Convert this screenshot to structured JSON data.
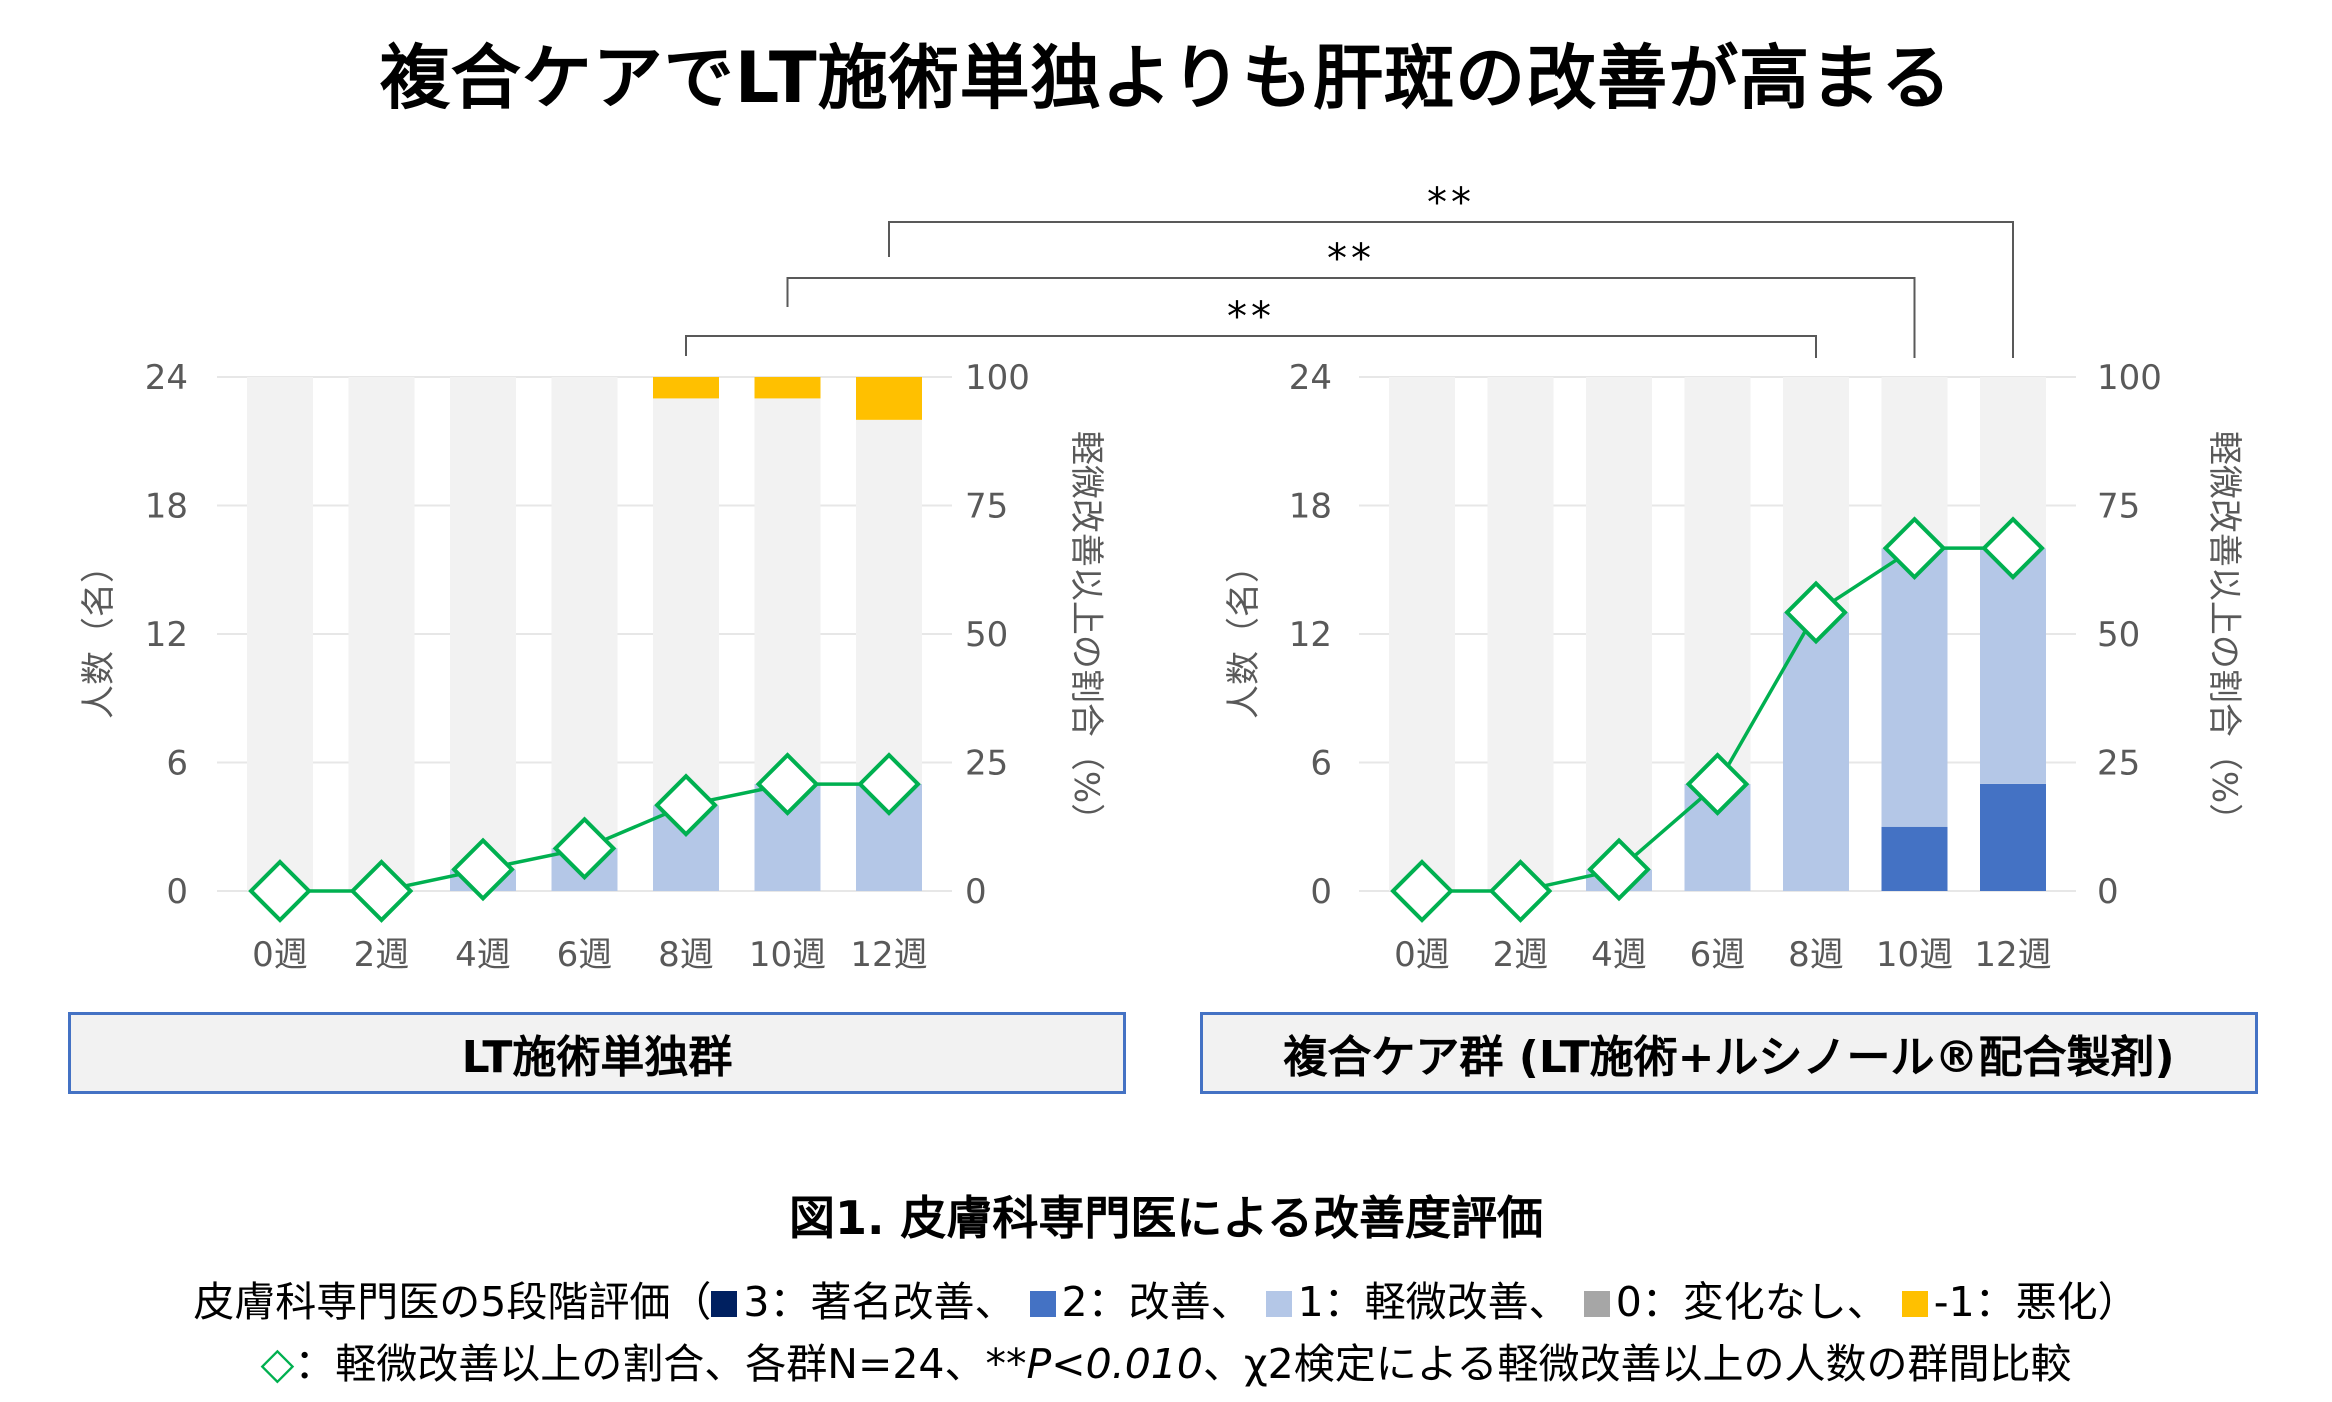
{
  "title": "複合ケアでLT施術単独よりも肝斑の改善が高まる",
  "colors": {
    "level3": "#002060",
    "level2": "#4472c4",
    "level1": "#b4c7e7",
    "level0": "#a6a6a6",
    "levelMinus1": "#ffc000",
    "background_bar": "#f2f2f2",
    "line": "#00b050",
    "bracket": "#595959",
    "axis_text": "#595959"
  },
  "chart_data": [
    {
      "type": "bar",
      "group_label": "LT施術単独群",
      "categories": [
        "0週",
        "2週",
        "4週",
        "6週",
        "8週",
        "10週",
        "12週"
      ],
      "ylabel_left": "人数（名）",
      "ylabel_right": "軽微改善以上の割合（%）",
      "y_left_ticks": [
        "0",
        "6",
        "12",
        "18",
        "24"
      ],
      "y_right_ticks": [
        "0",
        "25",
        "50",
        "75",
        "100"
      ],
      "ylim_left": [
        0,
        24
      ],
      "ylim_right": [
        0,
        100
      ],
      "series": [
        {
          "name": "3：著名改善",
          "values": [
            0,
            0,
            0,
            0,
            0,
            0,
            0
          ]
        },
        {
          "name": "2：改善",
          "values": [
            0,
            0,
            0,
            0,
            0,
            0,
            0
          ]
        },
        {
          "name": "1：軽微改善",
          "values": [
            0,
            0,
            1,
            2,
            4,
            5,
            5
          ]
        },
        {
          "name": "0：変化なし",
          "values": [
            24,
            24,
            23,
            22,
            19,
            18,
            17
          ]
        },
        {
          "name": "-1：悪化",
          "values": [
            0,
            0,
            0,
            0,
            1,
            1,
            2
          ]
        }
      ],
      "line": {
        "name": "軽微改善以上の割合",
        "values": [
          0,
          0,
          4.2,
          8.3,
          16.7,
          20.8,
          20.8
        ]
      }
    },
    {
      "type": "bar",
      "group_label": "複合ケア群 (LT施術+ルシノール®配合製剤)",
      "categories": [
        "0週",
        "2週",
        "4週",
        "6週",
        "8週",
        "10週",
        "12週"
      ],
      "ylabel_left": "人数（名）",
      "ylabel_right": "軽微改善以上の割合（%）",
      "y_left_ticks": [
        "0",
        "6",
        "12",
        "18",
        "24"
      ],
      "y_right_ticks": [
        "0",
        "25",
        "50",
        "75",
        "100"
      ],
      "ylim_left": [
        0,
        24
      ],
      "ylim_right": [
        0,
        100
      ],
      "series": [
        {
          "name": "3：著名改善",
          "values": [
            0,
            0,
            0,
            0,
            0,
            0,
            0
          ]
        },
        {
          "name": "2：改善",
          "values": [
            0,
            0,
            0,
            0,
            0,
            3,
            5
          ]
        },
        {
          "name": "1：軽微改善",
          "values": [
            0,
            0,
            1,
            5,
            13,
            13,
            11
          ]
        },
        {
          "name": "0：変化なし",
          "values": [
            24,
            24,
            23,
            19,
            11,
            8,
            8
          ]
        },
        {
          "name": "-1：悪化",
          "values": [
            0,
            0,
            0,
            0,
            0,
            0,
            0
          ]
        }
      ],
      "line": {
        "name": "軽微改善以上の割合",
        "values": [
          0,
          0,
          4.2,
          20.8,
          54.2,
          66.7,
          66.7
        ]
      }
    }
  ],
  "significance": [
    {
      "label": "**",
      "from": "8週",
      "to": "8週"
    },
    {
      "label": "**",
      "from": "10週",
      "to": "10週"
    },
    {
      "label": "**",
      "from": "12週",
      "to": "12週"
    }
  ],
  "caption": "図1. 皮膚科専門医による改善度評価",
  "legend": {
    "prefix": "皮膚科専門医の5段階評価（",
    "items": [
      {
        "label": "3：著名改善、",
        "color": "#002060"
      },
      {
        "label": "2：改善、",
        "color": "#4472c4"
      },
      {
        "label": "1：軽微改善、",
        "color": "#b4c7e7"
      },
      {
        "label": "0：変化なし、",
        "color": "#a6a6a6"
      },
      {
        "label": "-1：悪化）",
        "color": "#ffc000"
      }
    ]
  },
  "note": {
    "symbol": "◇",
    "text1": "：軽微改善以上の割合、各群N=24、",
    "pvalue": "**P<0.010",
    "text2": "、χ2検定による軽微改善以上の人数の群間比較"
  }
}
